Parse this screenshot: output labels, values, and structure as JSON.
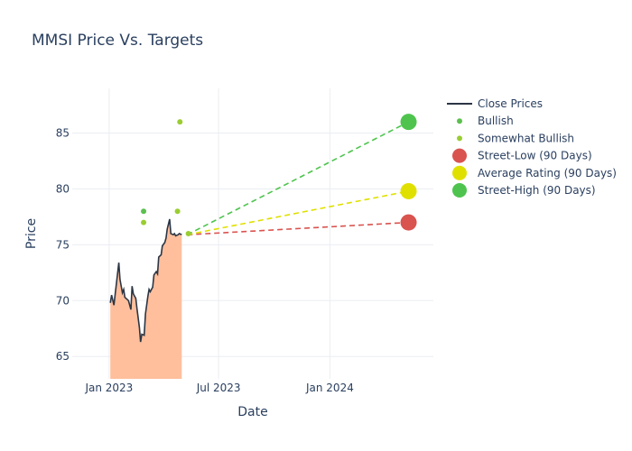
{
  "chart_data": {
    "type": "line",
    "title": "MMSI Price Vs. Targets",
    "xlabel": "Date",
    "ylabel": "Price",
    "x_range": [
      "2022-11-01",
      "2024-06-20"
    ],
    "y_range": [
      63,
      89
    ],
    "x_ticks": [
      {
        "date": "2023-01-01",
        "label": "Jan 2023"
      },
      {
        "date": "2023-07-01",
        "label": "Jul 2023"
      },
      {
        "date": "2024-01-01",
        "label": "Jan 2024"
      }
    ],
    "y_ticks": [
      65,
      70,
      75,
      80,
      85
    ],
    "grid": true,
    "legend_position": "right",
    "colors": {
      "close": "#2b3645",
      "area": "#ffbf9c",
      "bullish": "#5cbf4f",
      "somewhat_bullish": "#9acd32",
      "street_low": "#d9534f",
      "average": "#e0e000",
      "street_high": "#4ec44e"
    },
    "close_prices": {
      "name": "Close Prices",
      "dates": [
        "2023-01-03",
        "2023-01-05",
        "2023-01-09",
        "2023-01-11",
        "2023-01-13",
        "2023-01-17",
        "2023-01-19",
        "2023-01-23",
        "2023-01-25",
        "2023-01-27",
        "2023-01-31",
        "2023-02-02",
        "2023-02-06",
        "2023-02-08",
        "2023-02-10",
        "2023-02-14",
        "2023-02-16",
        "2023-02-20",
        "2023-02-22",
        "2023-02-24",
        "2023-02-28",
        "2023-03-02",
        "2023-03-06",
        "2023-03-08",
        "2023-03-10",
        "2023-03-14",
        "2023-03-16",
        "2023-03-20",
        "2023-03-22",
        "2023-03-24",
        "2023-03-28",
        "2023-03-30",
        "2023-04-03",
        "2023-04-05",
        "2023-04-07",
        "2023-04-11",
        "2023-04-13",
        "2023-04-17",
        "2023-04-19",
        "2023-04-21",
        "2023-04-25",
        "2023-04-27",
        "2023-05-01"
      ],
      "values": [
        69.8,
        70.5,
        69.6,
        70.6,
        71.5,
        73.4,
        71.9,
        70.7,
        71.0,
        70.3,
        70.1,
        70.0,
        69.2,
        71.3,
        70.6,
        70.2,
        69.3,
        67.6,
        66.3,
        67.0,
        66.9,
        68.8,
        70.4,
        71.0,
        70.8,
        71.2,
        72.3,
        72.6,
        72.4,
        73.9,
        74.1,
        74.9,
        75.2,
        75.6,
        76.4,
        77.3,
        76.0,
        75.9,
        76.0,
        75.8,
        75.9,
        76.0,
        75.9
      ]
    },
    "analyst_ratings": [
      {
        "series": "Bullish",
        "date": "2023-02-27",
        "value": 78
      },
      {
        "series": "Somewhat Bullish",
        "date": "2023-02-27",
        "value": 77
      },
      {
        "series": "Somewhat Bullish",
        "date": "2023-04-24",
        "value": 78
      },
      {
        "series": "Somewhat Bullish",
        "date": "2023-04-28",
        "value": 86
      },
      {
        "series": "Somewhat Bullish",
        "date": "2023-05-12",
        "value": 76
      }
    ],
    "targets": {
      "start_date": "2023-05-10",
      "start_value": 75.9,
      "end_date": "2024-05-10",
      "street_low": {
        "name": "Street-Low (90 Days)",
        "value": 77
      },
      "average": {
        "name": "Average Rating (90 Days)",
        "value": 79.8
      },
      "street_high": {
        "name": "Street-High (90 Days)",
        "value": 86
      }
    },
    "legend": [
      {
        "label": "Close Prices",
        "symbol": "line",
        "color": "#2b3645"
      },
      {
        "label": "Bullish",
        "symbol": "dot",
        "color": "#5cbf4f"
      },
      {
        "label": "Somewhat Bullish",
        "symbol": "dot",
        "color": "#9acd32"
      },
      {
        "label": "Street-Low (90 Days)",
        "symbol": "marker",
        "color": "#d9534f"
      },
      {
        "label": "Average Rating (90 Days)",
        "symbol": "marker",
        "color": "#e0e000"
      },
      {
        "label": "Street-High (90 Days)",
        "symbol": "marker",
        "color": "#4ec44e"
      }
    ]
  }
}
